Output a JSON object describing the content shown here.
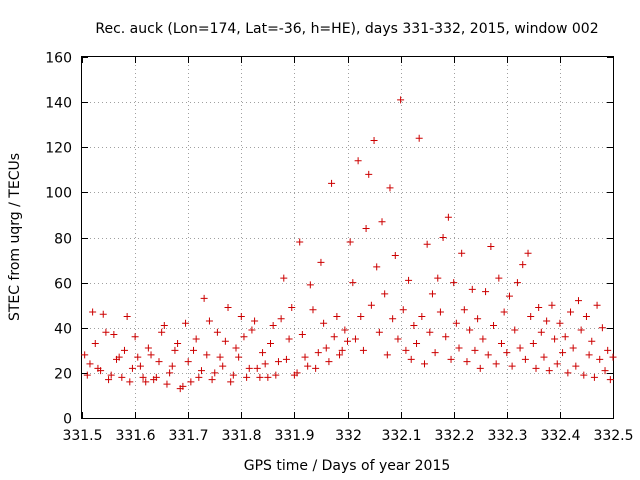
{
  "chart_data": {
    "type": "scatter",
    "title": "Rec. auck (Lon=174, Lat=-36, h=HE), days 331-332, 2015, window 002",
    "xlabel": "GPS time / Days of year 2015",
    "ylabel": "STEC from uqrg / TECUs",
    "xlim": [
      331.5,
      332.5
    ],
    "ylim": [
      0,
      160
    ],
    "x_ticks": [
      331.5,
      331.6,
      331.7,
      331.8,
      331.9,
      332.0,
      332.1,
      332.2,
      332.3,
      332.4,
      332.5
    ],
    "x_tick_labels": [
      "331.5",
      "331.6",
      "331.7",
      "331.8",
      "331.9",
      "332",
      "332.1",
      "332.2",
      "332.3",
      "332.4",
      "332.5"
    ],
    "y_ticks": [
      0,
      20,
      40,
      60,
      80,
      100,
      120,
      140,
      160
    ],
    "y_tick_labels": [
      "0",
      "20",
      "40",
      "60",
      "80",
      "100",
      "120",
      "140",
      "160"
    ],
    "grid": true,
    "marker": "plus",
    "color": "#cc0000",
    "series": [
      {
        "name": "STEC",
        "points": [
          [
            331.51,
            19
          ],
          [
            331.52,
            47
          ],
          [
            331.53,
            22
          ],
          [
            331.54,
            46
          ],
          [
            331.55,
            17
          ],
          [
            331.56,
            37
          ],
          [
            331.57,
            27
          ],
          [
            331.58,
            30
          ],
          [
            331.59,
            16
          ],
          [
            331.6,
            36
          ],
          [
            331.61,
            23
          ],
          [
            331.62,
            16
          ],
          [
            331.63,
            28
          ],
          [
            331.64,
            18
          ],
          [
            331.65,
            38
          ],
          [
            331.66,
            15
          ],
          [
            331.67,
            23
          ],
          [
            331.68,
            33
          ],
          [
            331.69,
            14
          ],
          [
            331.7,
            25
          ],
          [
            331.71,
            30
          ],
          [
            331.72,
            18
          ],
          [
            331.73,
            53
          ],
          [
            331.74,
            43
          ],
          [
            331.75,
            20
          ],
          [
            331.76,
            27
          ],
          [
            331.77,
            34
          ],
          [
            331.78,
            16
          ],
          [
            331.79,
            31
          ],
          [
            331.8,
            45
          ],
          [
            331.81,
            18
          ],
          [
            331.82,
            39
          ],
          [
            331.83,
            22
          ],
          [
            331.84,
            29
          ],
          [
            331.85,
            18
          ],
          [
            331.86,
            41
          ],
          [
            331.87,
            25
          ],
          [
            331.88,
            62
          ],
          [
            331.89,
            35
          ],
          [
            331.9,
            19
          ],
          [
            331.91,
            78
          ],
          [
            331.92,
            27
          ],
          [
            331.93,
            59
          ],
          [
            331.94,
            22
          ],
          [
            331.95,
            69
          ],
          [
            331.96,
            31
          ],
          [
            331.97,
            104
          ],
          [
            331.98,
            45
          ],
          [
            331.99,
            30
          ],
          [
            332.0,
            34
          ],
          [
            331.505,
            28
          ],
          [
            331.515,
            24
          ],
          [
            331.525,
            33
          ],
          [
            331.535,
            21
          ],
          [
            331.545,
            38
          ],
          [
            331.555,
            19
          ],
          [
            331.565,
            26
          ],
          [
            331.575,
            18
          ],
          [
            331.585,
            45
          ],
          [
            331.595,
            22
          ],
          [
            331.605,
            27
          ],
          [
            331.615,
            18
          ],
          [
            331.625,
            31
          ],
          [
            331.635,
            17
          ],
          [
            331.645,
            25
          ],
          [
            331.655,
            41
          ],
          [
            331.665,
            20
          ],
          [
            331.675,
            30
          ],
          [
            331.685,
            13
          ],
          [
            331.695,
            42
          ],
          [
            331.705,
            16
          ],
          [
            331.715,
            35
          ],
          [
            331.725,
            21
          ],
          [
            331.735,
            28
          ],
          [
            331.745,
            17
          ],
          [
            331.755,
            38
          ],
          [
            331.765,
            23
          ],
          [
            331.775,
            49
          ],
          [
            331.785,
            19
          ],
          [
            331.795,
            27
          ],
          [
            331.805,
            36
          ],
          [
            331.815,
            22
          ],
          [
            331.825,
            43
          ],
          [
            331.835,
            18
          ],
          [
            331.845,
            24
          ],
          [
            331.855,
            33
          ],
          [
            331.865,
            19
          ],
          [
            331.875,
            44
          ],
          [
            331.885,
            26
          ],
          [
            331.895,
            49
          ],
          [
            331.905,
            20
          ],
          [
            331.915,
            37
          ],
          [
            331.925,
            23
          ],
          [
            331.935,
            48
          ],
          [
            331.945,
            29
          ],
          [
            331.955,
            42
          ],
          [
            331.965,
            25
          ],
          [
            331.975,
            36
          ],
          [
            331.985,
            28
          ],
          [
            331.995,
            39
          ],
          [
            332.005,
            78
          ],
          [
            332.01,
            60
          ],
          [
            332.015,
            35
          ],
          [
            332.02,
            114
          ],
          [
            332.025,
            45
          ],
          [
            332.03,
            30
          ],
          [
            332.035,
            84
          ],
          [
            332.04,
            108
          ],
          [
            332.045,
            50
          ],
          [
            332.05,
            123
          ],
          [
            332.055,
            67
          ],
          [
            332.06,
            38
          ],
          [
            332.065,
            87
          ],
          [
            332.07,
            55
          ],
          [
            332.075,
            28
          ],
          [
            332.08,
            102
          ],
          [
            332.085,
            44
          ],
          [
            332.09,
            72
          ],
          [
            332.095,
            35
          ],
          [
            332.1,
            141
          ],
          [
            332.105,
            48
          ],
          [
            332.11,
            30
          ],
          [
            332.115,
            61
          ],
          [
            332.12,
            26
          ],
          [
            332.125,
            41
          ],
          [
            332.13,
            33
          ],
          [
            332.135,
            124
          ],
          [
            332.14,
            45
          ],
          [
            332.145,
            24
          ],
          [
            332.15,
            77
          ],
          [
            332.155,
            38
          ],
          [
            332.16,
            55
          ],
          [
            332.165,
            29
          ],
          [
            332.17,
            62
          ],
          [
            332.175,
            47
          ],
          [
            332.18,
            80
          ],
          [
            332.185,
            36
          ],
          [
            332.19,
            89
          ],
          [
            332.195,
            26
          ],
          [
            332.2,
            60
          ],
          [
            332.205,
            42
          ],
          [
            332.21,
            31
          ],
          [
            332.215,
            73
          ],
          [
            332.22,
            48
          ],
          [
            332.225,
            25
          ],
          [
            332.23,
            39
          ],
          [
            332.235,
            57
          ],
          [
            332.24,
            30
          ],
          [
            332.245,
            44
          ],
          [
            332.25,
            22
          ],
          [
            332.255,
            35
          ],
          [
            332.26,
            56
          ],
          [
            332.265,
            28
          ],
          [
            332.27,
            76
          ],
          [
            332.275,
            41
          ],
          [
            332.28,
            24
          ],
          [
            332.285,
            62
          ],
          [
            332.29,
            33
          ],
          [
            332.295,
            47
          ],
          [
            332.3,
            29
          ],
          [
            332.305,
            54
          ],
          [
            332.31,
            23
          ],
          [
            332.315,
            39
          ],
          [
            332.32,
            60
          ],
          [
            332.325,
            31
          ],
          [
            332.33,
            68
          ],
          [
            332.335,
            26
          ],
          [
            332.34,
            73
          ],
          [
            332.345,
            45
          ],
          [
            332.35,
            33
          ],
          [
            332.355,
            22
          ],
          [
            332.36,
            49
          ],
          [
            332.365,
            38
          ],
          [
            332.37,
            27
          ],
          [
            332.375,
            43
          ],
          [
            332.38,
            21
          ],
          [
            332.385,
            50
          ],
          [
            332.39,
            35
          ],
          [
            332.395,
            24
          ],
          [
            332.4,
            42
          ],
          [
            332.405,
            29
          ],
          [
            332.41,
            36
          ],
          [
            332.415,
            20
          ],
          [
            332.42,
            47
          ],
          [
            332.425,
            31
          ],
          [
            332.43,
            23
          ],
          [
            332.435,
            52
          ],
          [
            332.44,
            39
          ],
          [
            332.445,
            19
          ],
          [
            332.45,
            45
          ],
          [
            332.455,
            28
          ],
          [
            332.46,
            34
          ],
          [
            332.465,
            18
          ],
          [
            332.47,
            50
          ],
          [
            332.475,
            26
          ],
          [
            332.48,
            40
          ],
          [
            332.485,
            21
          ],
          [
            332.49,
            30
          ],
          [
            332.495,
            17
          ],
          [
            332.5,
            27
          ]
        ]
      }
    ]
  }
}
